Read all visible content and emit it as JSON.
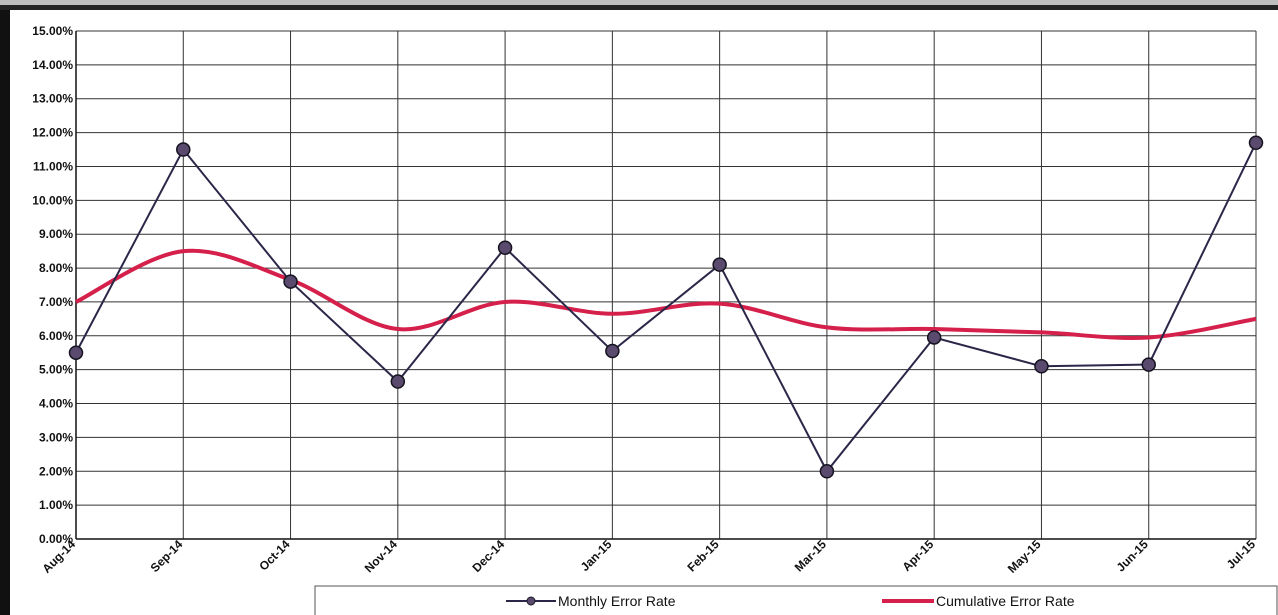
{
  "chart_data": {
    "type": "line",
    "title": "",
    "xlabel": "",
    "ylabel": "",
    "categories": [
      "Aug-14",
      "Sep-14",
      "Oct-14",
      "Nov-14",
      "Dec-14",
      "Jan-15",
      "Feb-15",
      "Mar-15",
      "Apr-15",
      "May-15",
      "Jun-15",
      "Jul-15"
    ],
    "y_ticks": [
      "0.00%",
      "1.00%",
      "2.00%",
      "3.00%",
      "4.00%",
      "5.00%",
      "6.00%",
      "7.00%",
      "8.00%",
      "9.00%",
      "10.00%",
      "11.00%",
      "12.00%",
      "13.00%",
      "14.00%",
      "15.00%"
    ],
    "ylim": [
      0,
      15
    ],
    "grid": true,
    "legend_position": "bottom",
    "series": [
      {
        "name": "Monthly Error Rate",
        "color": "#2b2748",
        "marker_color": "#5a4a6e",
        "values": [
          5.5,
          11.5,
          7.6,
          4.65,
          8.6,
          5.55,
          8.1,
          2.0,
          5.95,
          5.1,
          5.15,
          11.7
        ]
      },
      {
        "name": "Cumulative Error Rate",
        "color": "#d4204a",
        "smooth": true,
        "values": [
          7.0,
          8.5,
          7.65,
          6.2,
          7.0,
          6.65,
          6.95,
          6.25,
          6.2,
          6.1,
          5.95,
          6.5
        ]
      }
    ]
  }
}
